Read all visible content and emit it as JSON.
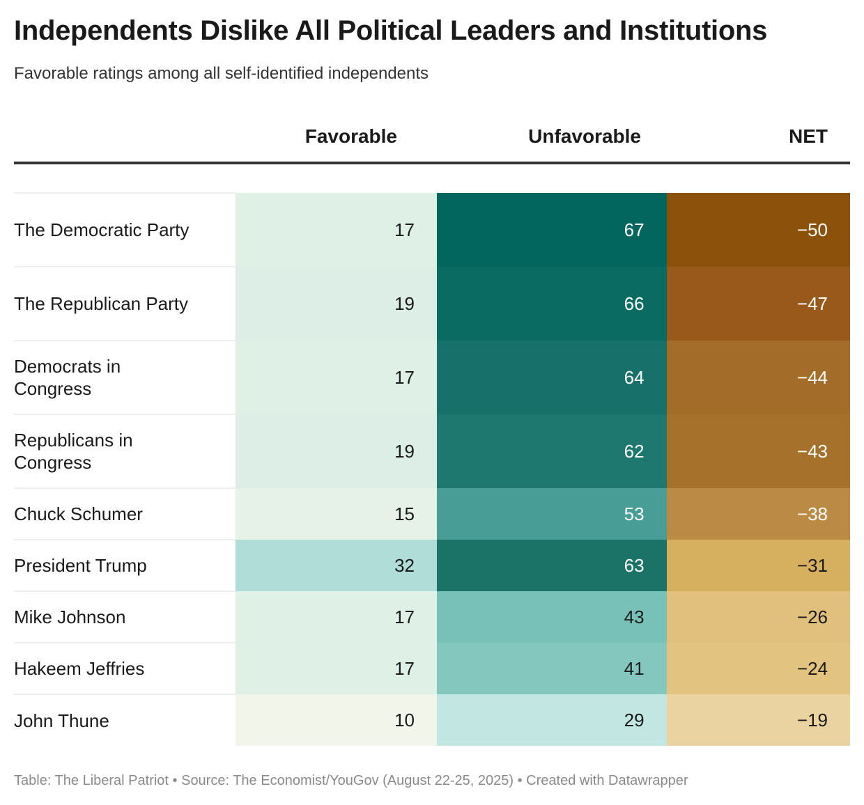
{
  "title": "Independents Dislike All Political Leaders and Institutions",
  "subtitle": "Favorable ratings among all self-identified independents",
  "footer": "Table: The Liberal Patriot • Source: The Economist/YouGov (August 22-25, 2025) • Created with Datawrapper",
  "chart_data": {
    "type": "table",
    "columns": [
      "Favorable",
      "Unfavorable",
      "NET"
    ],
    "rows": [
      {
        "label": "The Democratic Party",
        "fav": "17",
        "unfav": "67",
        "net": "−50",
        "colors": [
          "#dff0e6",
          "#03665e",
          "#8c510a"
        ],
        "dark": [
          0,
          1,
          1
        ]
      },
      {
        "label": "The Republican Party",
        "fav": "19",
        "unfav": "66",
        "net": "−47",
        "colors": [
          "#ddeee6",
          "#0a6b62",
          "#98591b"
        ],
        "dark": [
          0,
          1,
          1
        ]
      },
      {
        "label": "Democrats in Congress",
        "fav": "17",
        "unfav": "64",
        "net": "−44",
        "colors": [
          "#dff0e6",
          "#17706a",
          "#a36c28"
        ],
        "dark": [
          0,
          1,
          1
        ]
      },
      {
        "label": "Republicans in Congress",
        "fav": "19",
        "unfav": "62",
        "net": "−43",
        "colors": [
          "#ddeee6",
          "#1f786f",
          "#a6722b"
        ],
        "dark": [
          0,
          1,
          1
        ]
      },
      {
        "label": "Chuck Schumer",
        "fav": "15",
        "unfav": "53",
        "net": "−38",
        "colors": [
          "#e6f2e8",
          "#489e96",
          "#bb8a44"
        ],
        "dark": [
          0,
          1,
          1
        ]
      },
      {
        "label": "President Trump",
        "fav": "32",
        "unfav": "63",
        "net": "−31",
        "colors": [
          "#b0ddd8",
          "#1b7368",
          "#d6b05f"
        ],
        "dark": [
          0,
          1,
          0
        ]
      },
      {
        "label": "Mike Johnson",
        "fav": "17",
        "unfav": "43",
        "net": "−26",
        "colors": [
          "#dff0e6",
          "#77c1b8",
          "#e0c07c"
        ],
        "dark": [
          0,
          0,
          0
        ]
      },
      {
        "label": "Hakeem Jeffries",
        "fav": "17",
        "unfav": "41",
        "net": "−24",
        "colors": [
          "#dff0e6",
          "#83c7be",
          "#e2c480"
        ],
        "dark": [
          0,
          0,
          0
        ]
      },
      {
        "label": "John Thune",
        "fav": "10",
        "unfav": "29",
        "net": "−19",
        "colors": [
          "#f1f5ea",
          "#c2e6e1",
          "#ead3a0"
        ],
        "dark": [
          0,
          0,
          0
        ]
      }
    ]
  }
}
